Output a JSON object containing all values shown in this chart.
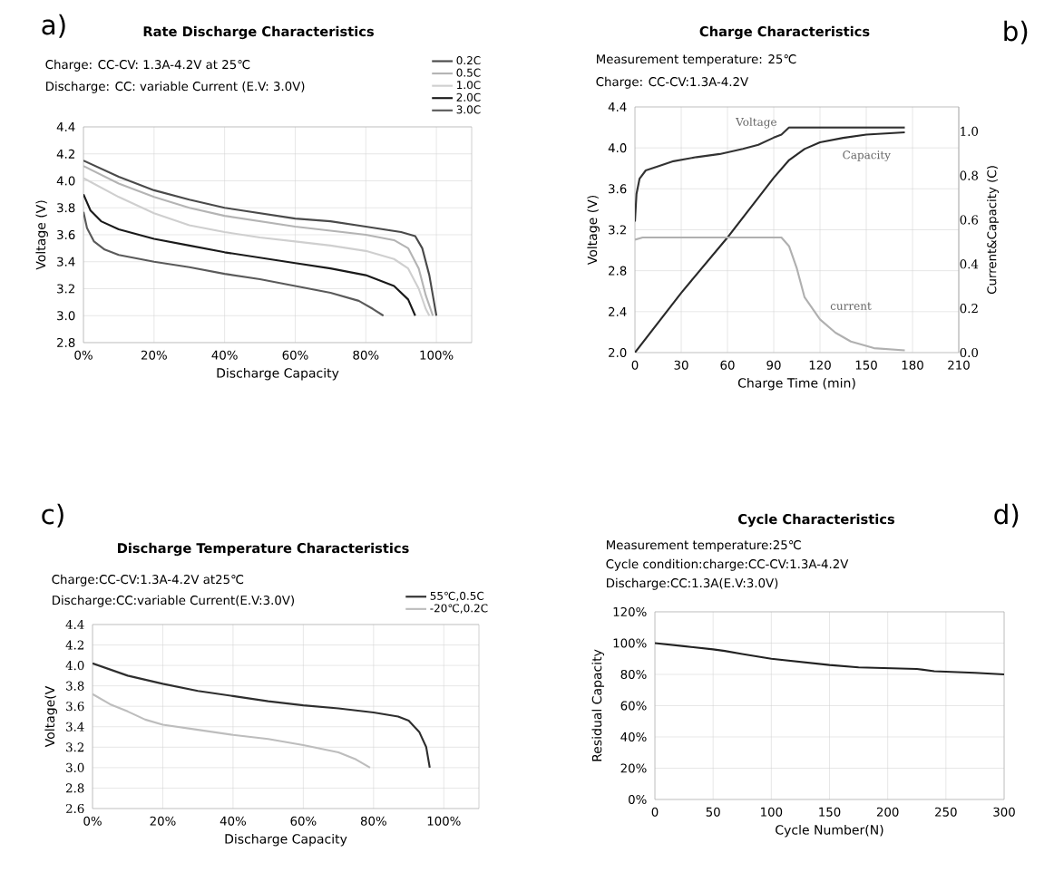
{
  "chart_data": [
    {
      "type": "line",
      "title": "Rate Discharge Characteristics",
      "subtitle": "Charge: CC-CV: 1.3A-4.2V at 25℃",
      "annotations": [
        "a)",
        "Discharge: CC: variable Current (E.V: 3.0V)"
      ],
      "xlabel": "Discharge Capacity",
      "ylabel": "Voltage (V)",
      "xlim": [
        0,
        110
      ],
      "ylim": [
        2.8,
        4.4
      ],
      "xticks": [
        {
          "value": 0,
          "label": "0%"
        },
        {
          "value": 20,
          "label": "20%"
        },
        {
          "value": 40,
          "label": "40%"
        },
        {
          "value": 60,
          "label": "60%"
        },
        {
          "value": 80,
          "label": "80%"
        },
        {
          "value": 100,
          "label": "100%"
        }
      ],
      "yticks": [
        {
          "value": 2.8,
          "label": "2.8"
        },
        {
          "value": 3.0,
          "label": "3.0"
        },
        {
          "value": 3.2,
          "label": "3.2"
        },
        {
          "value": 3.4,
          "label": "3.4"
        },
        {
          "value": 3.6,
          "label": "3.6"
        },
        {
          "value": 3.8,
          "label": "3.8"
        },
        {
          "value": 4.0,
          "label": "4.0"
        },
        {
          "value": 4.2,
          "label": "4.2"
        },
        {
          "value": 4.4,
          "label": "4.4"
        }
      ],
      "grid": true,
      "legend": "top right",
      "series": [
        {
          "name": "0.2C",
          "color": "#4a4a4a",
          "x": [
            0,
            10,
            20,
            30,
            40,
            50,
            60,
            70,
            80,
            90,
            94,
            96,
            98,
            99,
            100
          ],
          "values": [
            4.15,
            4.03,
            3.93,
            3.86,
            3.8,
            3.76,
            3.72,
            3.7,
            3.66,
            3.62,
            3.59,
            3.5,
            3.3,
            3.15,
            3.0
          ]
        },
        {
          "name": "0.5C",
          "color": "#b4b4b4",
          "x": [
            0,
            10,
            20,
            30,
            40,
            50,
            60,
            70,
            80,
            88,
            92,
            95,
            97,
            99
          ],
          "values": [
            4.11,
            3.98,
            3.88,
            3.8,
            3.74,
            3.7,
            3.66,
            3.63,
            3.6,
            3.56,
            3.5,
            3.35,
            3.15,
            3.0
          ]
        },
        {
          "name": "1.0C",
          "color": "#cfcfcf",
          "x": [
            0,
            10,
            20,
            30,
            40,
            50,
            60,
            70,
            80,
            88,
            92,
            95,
            97,
            98
          ],
          "values": [
            4.02,
            3.88,
            3.76,
            3.67,
            3.62,
            3.58,
            3.55,
            3.52,
            3.48,
            3.42,
            3.35,
            3.2,
            3.05,
            3.0
          ]
        },
        {
          "name": "2.0C",
          "color": "#1a1a1a",
          "x": [
            0,
            2,
            5,
            10,
            20,
            30,
            40,
            50,
            60,
            70,
            80,
            88,
            92,
            94
          ],
          "values": [
            3.9,
            3.78,
            3.7,
            3.64,
            3.57,
            3.52,
            3.47,
            3.43,
            3.39,
            3.35,
            3.3,
            3.22,
            3.12,
            3.0
          ]
        },
        {
          "name": "3.0C",
          "color": "#5a5a5a",
          "x": [
            0,
            1,
            3,
            6,
            10,
            20,
            30,
            40,
            50,
            60,
            70,
            78,
            82,
            85
          ],
          "values": [
            3.77,
            3.65,
            3.55,
            3.49,
            3.45,
            3.4,
            3.36,
            3.31,
            3.27,
            3.22,
            3.17,
            3.11,
            3.05,
            3.0
          ]
        }
      ]
    },
    {
      "type": "line",
      "title": "Charge Characteristics",
      "subtitle": "Measurement temperature: 25℃",
      "annotations": [
        "b)",
        "Charge: CC-CV:1.3A-4.2V"
      ],
      "xlabel": "Charge Time (min)",
      "ylabel": "Voltage (V)",
      "y2label": "Current&Capacity (C)",
      "xlim": [
        0,
        210
      ],
      "ylim": [
        2.0,
        4.4
      ],
      "y2lim": [
        0,
        1.11
      ],
      "xticks": [
        0,
        30,
        60,
        90,
        120,
        150,
        180,
        210
      ],
      "yticks": [
        {
          "value": 2.0,
          "label": "2.0"
        },
        {
          "value": 2.4,
          "label": "2.4"
        },
        {
          "value": 2.8,
          "label": "2.8"
        },
        {
          "value": 3.2,
          "label": "3.2"
        },
        {
          "value": 3.6,
          "label": "3.6"
        },
        {
          "value": 4.0,
          "label": "4.0"
        },
        {
          "value": 4.4,
          "label": "4.4"
        }
      ],
      "y2ticks": [
        {
          "value": 0.0,
          "label": "0.0"
        },
        {
          "value": 0.2,
          "label": "0.2"
        },
        {
          "value": 0.4,
          "label": "0.4"
        },
        {
          "value": 0.6,
          "label": "0.6"
        },
        {
          "value": 0.8,
          "label": "0.8"
        },
        {
          "value": 1.0,
          "label": "1.0"
        }
      ],
      "grid": true,
      "series": [
        {
          "name": "Voltage",
          "color": "#333333",
          "x": [
            0,
            1,
            3,
            7,
            15,
            25,
            40,
            55,
            70,
            80,
            90,
            95,
            100,
            175
          ],
          "values": [
            3.28,
            3.55,
            3.7,
            3.78,
            3.82,
            3.87,
            3.91,
            3.94,
            3.99,
            4.03,
            4.1,
            4.13,
            4.2,
            4.2
          ]
        },
        {
          "name": "Capacity",
          "color": "#2a2a2a",
          "axis": "y2",
          "x": [
            0,
            30,
            60,
            80,
            90,
            100,
            110,
            120,
            135,
            150,
            175
          ],
          "values": [
            0,
            0.27,
            0.52,
            0.7,
            0.79,
            0.87,
            0.92,
            0.95,
            0.97,
            0.985,
            0.995
          ]
        },
        {
          "name": "current",
          "color": "#b0b0b0",
          "axis": "y2",
          "x": [
            0,
            5,
            95,
            100,
            105,
            110,
            120,
            130,
            140,
            155,
            175
          ],
          "values": [
            0.51,
            0.52,
            0.52,
            0.48,
            0.38,
            0.25,
            0.15,
            0.09,
            0.05,
            0.02,
            0.01
          ]
        }
      ]
    },
    {
      "type": "line",
      "title": "Discharge Temperature Characteristics",
      "subtitle": "Charge:CC-CV:1.3A-4.2V  at25℃",
      "annotations": [
        "c)",
        "Discharge:CC:variable Current(E.V:3.0V)"
      ],
      "xlabel": "Discharge Capacity",
      "ylabel": "Voltage(V",
      "xlim": [
        0,
        110
      ],
      "ylim": [
        2.6,
        4.4
      ],
      "xticks": [
        {
          "value": 0,
          "label": "0%"
        },
        {
          "value": 20,
          "label": "20%"
        },
        {
          "value": 40,
          "label": "40%"
        },
        {
          "value": 60,
          "label": "60%"
        },
        {
          "value": 80,
          "label": "80%"
        },
        {
          "value": 100,
          "label": "100%"
        }
      ],
      "yticks": [
        {
          "value": 2.6,
          "label": "2.6"
        },
        {
          "value": 2.8,
          "label": "2.8"
        },
        {
          "value": 3.0,
          "label": "3.0"
        },
        {
          "value": 3.2,
          "label": "3.2"
        },
        {
          "value": 3.4,
          "label": "3.4"
        },
        {
          "value": 3.6,
          "label": "3.6"
        },
        {
          "value": 3.8,
          "label": "3.8"
        },
        {
          "value": 4.0,
          "label": "4.0"
        },
        {
          "value": 4.2,
          "label": "4.2"
        },
        {
          "value": 4.4,
          "label": "4.4"
        }
      ],
      "grid": true,
      "legend": "top right",
      "series": [
        {
          "name": "55℃,0.5C",
          "color": "#2e2e2e",
          "x": [
            0,
            10,
            20,
            30,
            40,
            50,
            60,
            70,
            80,
            87,
            90,
            93,
            95,
            96
          ],
          "values": [
            4.02,
            3.9,
            3.82,
            3.75,
            3.7,
            3.65,
            3.61,
            3.58,
            3.54,
            3.5,
            3.46,
            3.35,
            3.2,
            3.0
          ]
        },
        {
          "name": "-20℃,0.2C",
          "color": "#bdbdbd",
          "x": [
            0,
            5,
            10,
            15,
            20,
            30,
            40,
            50,
            60,
            70,
            75,
            79
          ],
          "values": [
            3.72,
            3.62,
            3.55,
            3.47,
            3.42,
            3.37,
            3.32,
            3.28,
            3.22,
            3.15,
            3.08,
            3.0
          ]
        }
      ]
    },
    {
      "type": "line",
      "title": "Cycle Characteristics",
      "subtitle": "Measurement temperature:25℃",
      "annotations": [
        "d)",
        "Cycle condition:charge:CC-CV:1.3A-4.2V",
        "Discharge:CC:1.3A(E.V:3.0V)"
      ],
      "xlabel": "Cycle Number(N)",
      "ylabel": "Residual Capacity",
      "xlim": [
        0,
        300
      ],
      "ylim": [
        0,
        120
      ],
      "xticks": [
        0,
        50,
        100,
        150,
        200,
        250,
        300
      ],
      "yticks": [
        {
          "value": 0,
          "label": "0%"
        },
        {
          "value": 20,
          "label": "20%"
        },
        {
          "value": 40,
          "label": "40%"
        },
        {
          "value": 60,
          "label": "60%"
        },
        {
          "value": 80,
          "label": "80%"
        },
        {
          "value": 100,
          "label": "100%"
        },
        {
          "value": 120,
          "label": "120%"
        }
      ],
      "grid": true,
      "series": [
        {
          "color": "#222222",
          "x": [
            0,
            25,
            50,
            60,
            75,
            100,
            125,
            150,
            175,
            200,
            225,
            240,
            275,
            300
          ],
          "values": [
            100,
            98,
            96,
            95,
            93,
            90,
            88,
            86,
            84.5,
            84,
            83.5,
            82,
            81,
            80
          ]
        }
      ]
    }
  ]
}
